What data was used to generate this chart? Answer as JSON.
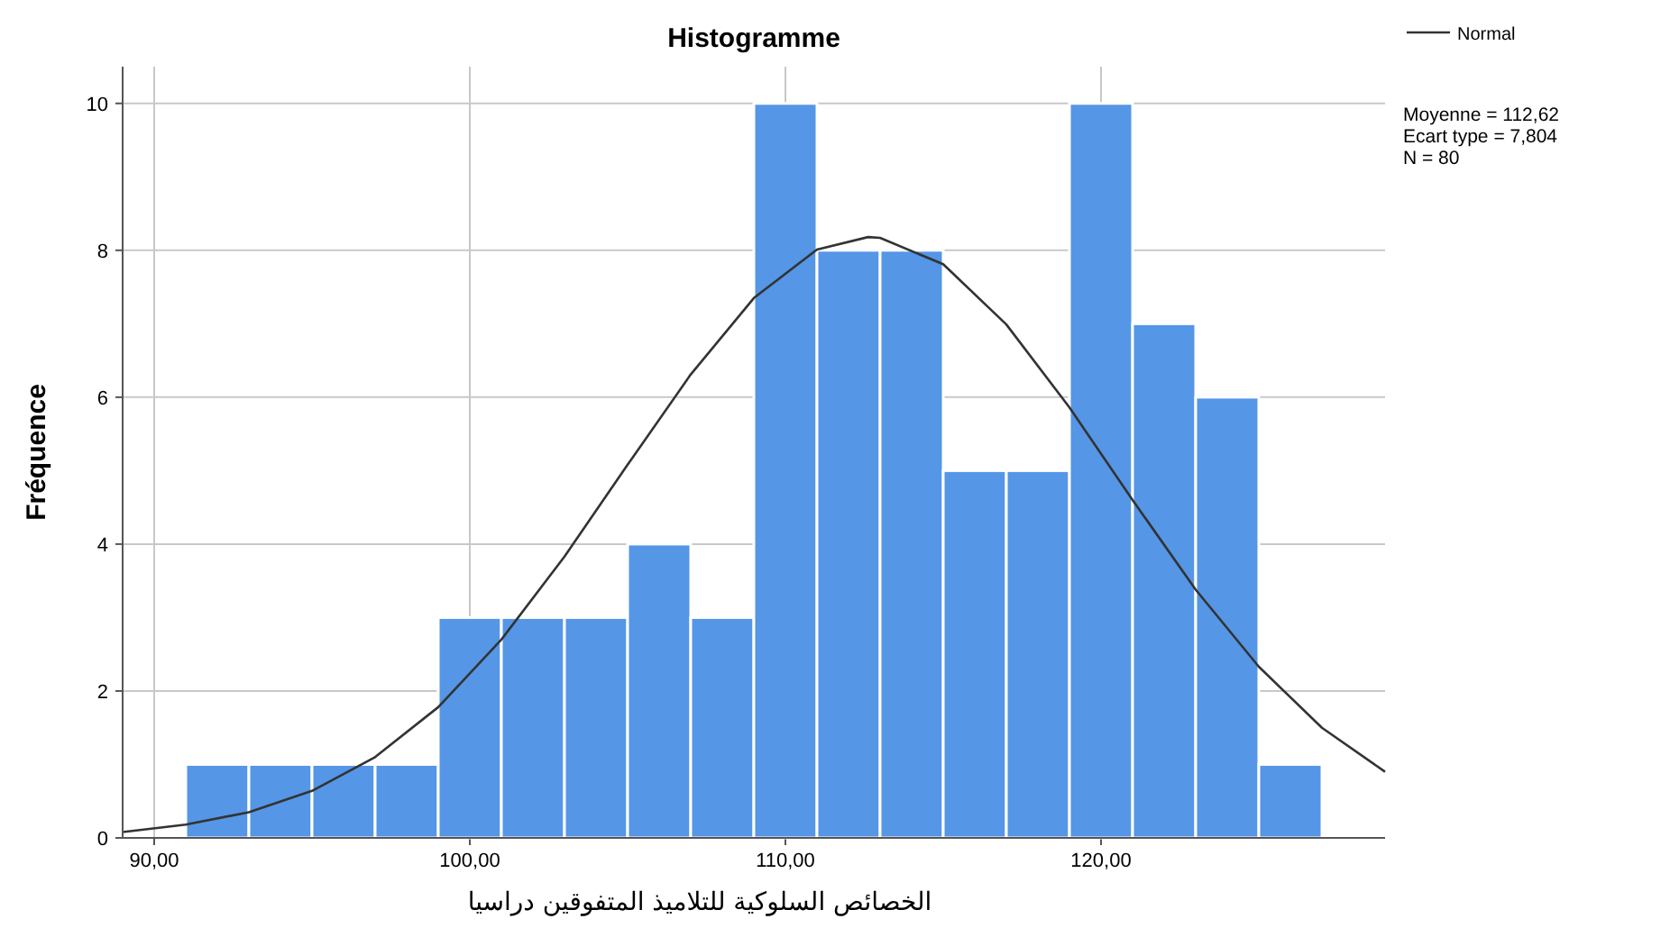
{
  "chart_data": {
    "type": "histogram",
    "title": "Histogramme",
    "xlabel": "الخصائص السلوكية للتلاميذ المتفوقين دراسيا",
    "ylabel": "Fréquence",
    "bins": [
      91,
      93,
      95,
      97,
      99,
      101,
      103,
      105,
      107,
      109,
      111,
      113,
      115,
      117,
      119,
      121,
      123,
      125,
      127
    ],
    "values": [
      1,
      1,
      1,
      1,
      3,
      3,
      3,
      4,
      3,
      10,
      8,
      8,
      5,
      5,
      10,
      7,
      6,
      1
    ],
    "color": "#5596e6",
    "series": [
      {
        "type": "line",
        "name": "Normal",
        "color": "#333333",
        "x": [
          89,
          91,
          93,
          95,
          97,
          99,
          101,
          103,
          105,
          107,
          109,
          111,
          112.62,
          113,
          115,
          117,
          119,
          121,
          123,
          125,
          127,
          129
        ],
        "values": [
          0.08,
          0.18,
          0.35,
          0.64,
          1.1,
          1.78,
          2.7,
          3.83,
          5.08,
          6.31,
          7.35,
          8.01,
          8.18,
          8.17,
          7.81,
          6.99,
          5.86,
          4.6,
          3.38,
          2.33,
          1.5,
          0.9
        ]
      }
    ],
    "xlim": [
      89,
      129
    ],
    "ylim": [
      0,
      10.5
    ],
    "xticks": [
      {
        "value": 90,
        "label": "90,00"
      },
      {
        "value": 100,
        "label": "100,00"
      },
      {
        "value": 110,
        "label": "110,00"
      },
      {
        "value": 120,
        "label": "120,00"
      }
    ],
    "yticks": [
      0,
      2,
      4,
      6,
      8,
      10
    ],
    "grid": true,
    "legend": "top right",
    "marker": "none",
    "line_style": "solid",
    "annotations": [
      "Moyenne = 112,62",
      "Ecart type = 7,804",
      "N = 80"
    ]
  }
}
